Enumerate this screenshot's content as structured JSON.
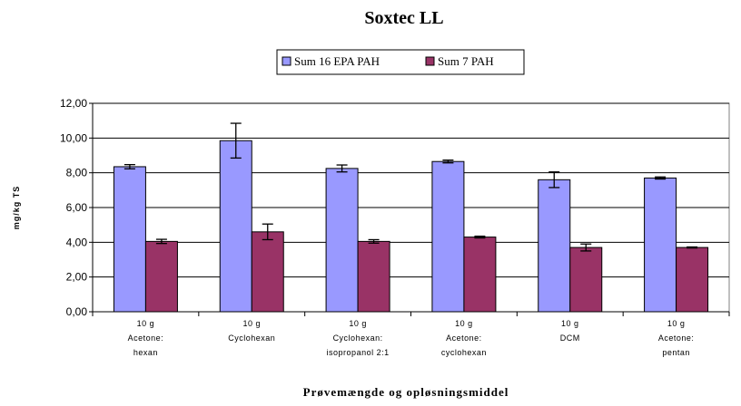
{
  "chart_data": {
    "type": "bar",
    "title": "Soxtec LL",
    "xlabel": "Prøvemængde og opløsningsmiddel",
    "ylabel": "mg/kg TS",
    "ylim": [
      0,
      12
    ],
    "yticks": [
      "0,00",
      "2,00",
      "4,00",
      "6,00",
      "8,00",
      "10,00",
      "12,00"
    ],
    "ytick_values": [
      0,
      2,
      4,
      6,
      8,
      10,
      12
    ],
    "grid": true,
    "legend_position": "top-center",
    "categories": [
      [
        "10 g",
        "Acetone:",
        "hexan"
      ],
      [
        "10 g",
        "Cyclohexan"
      ],
      [
        "10 g",
        "Cyclohexan:",
        "isopropanol 2:1"
      ],
      [
        "10 g",
        "Acetone:",
        "cyclohexan"
      ],
      [
        "10 g",
        "DCM"
      ],
      [
        "10 g",
        "Acetone:",
        "pentan"
      ]
    ],
    "series": [
      {
        "name": "Sum 16 EPA PAH",
        "color": "#9999ff",
        "values": [
          8.35,
          9.85,
          8.25,
          8.65,
          7.6,
          7.7
        ],
        "errors": [
          0.12,
          1.0,
          0.2,
          0.08,
          0.45,
          0.06
        ]
      },
      {
        "name": "Sum 7 PAH",
        "color": "#993366",
        "values": [
          4.05,
          4.6,
          4.05,
          4.3,
          3.7,
          3.7
        ],
        "errors": [
          0.12,
          0.45,
          0.1,
          0.05,
          0.2,
          0.03
        ]
      }
    ]
  }
}
